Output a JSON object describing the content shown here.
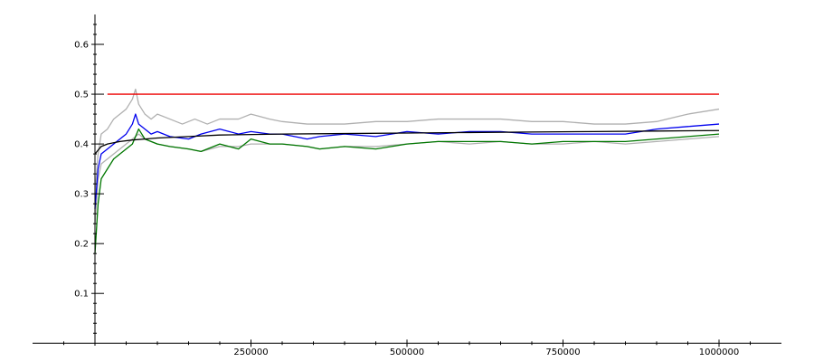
{
  "chart_data": {
    "type": "line",
    "title": "",
    "xlabel": "",
    "ylabel": "",
    "xlim": [
      -100000,
      1100000
    ],
    "ylim": [
      -0.005,
      0.66
    ],
    "grid": false,
    "legend": "none",
    "x_ticks": [
      {
        "value": 250000,
        "label": "250000"
      },
      {
        "value": 500000,
        "label": "500000"
      },
      {
        "value": 750000,
        "label": "750000"
      },
      {
        "value": 1000000,
        "label": "1000000"
      }
    ],
    "y_ticks": [
      {
        "value": 0.1,
        "label": "0.1"
      },
      {
        "value": 0.2,
        "label": "0.2"
      },
      {
        "value": 0.3,
        "label": "0.3"
      },
      {
        "value": 0.4,
        "label": "0.4"
      },
      {
        "value": 0.5,
        "label": "0.5"
      },
      {
        "value": 0.6,
        "label": "0.6"
      }
    ],
    "series": [
      {
        "color": "#b0b0b0",
        "x": [
          0,
          5000,
          10000,
          20000,
          30000,
          40000,
          50000,
          60000,
          65000,
          70000,
          75000,
          80000,
          90000,
          100000,
          120000,
          140000,
          160000,
          180000,
          200000,
          230000,
          250000,
          280000,
          300000,
          340000,
          360000,
          400000,
          450000,
          500000,
          550000,
          600000,
          650000,
          700000,
          750000,
          800000,
          850000,
          900000,
          950000,
          1000000
        ],
        "y": [
          0.3,
          0.38,
          0.42,
          0.43,
          0.45,
          0.46,
          0.47,
          0.49,
          0.51,
          0.48,
          0.47,
          0.46,
          0.45,
          0.46,
          0.45,
          0.44,
          0.45,
          0.44,
          0.45,
          0.45,
          0.46,
          0.45,
          0.445,
          0.44,
          0.44,
          0.44,
          0.445,
          0.445,
          0.45,
          0.45,
          0.45,
          0.445,
          0.445,
          0.44,
          0.44,
          0.445,
          0.46,
          0.47
        ]
      },
      {
        "color": "#b0b0b0",
        "x": [
          0,
          5000,
          10000,
          20000,
          30000,
          40000,
          50000,
          60000,
          70000,
          80000,
          100000,
          120000,
          150000,
          170000,
          200000,
          230000,
          250000,
          280000,
          300000,
          340000,
          360000,
          400000,
          450000,
          500000,
          550000,
          600000,
          650000,
          700000,
          750000,
          800000,
          850000,
          900000,
          950000,
          1000000
        ],
        "y": [
          0.24,
          0.33,
          0.36,
          0.37,
          0.38,
          0.39,
          0.4,
          0.41,
          0.42,
          0.41,
          0.4,
          0.395,
          0.39,
          0.385,
          0.395,
          0.395,
          0.4,
          0.4,
          0.4,
          0.395,
          0.39,
          0.395,
          0.395,
          0.4,
          0.405,
          0.4,
          0.405,
          0.4,
          0.4,
          0.405,
          0.4,
          0.405,
          0.41,
          0.415
        ]
      },
      {
        "color": "#0000ee",
        "x": [
          0,
          5000,
          10000,
          20000,
          30000,
          40000,
          50000,
          60000,
          65000,
          70000,
          80000,
          90000,
          100000,
          120000,
          150000,
          170000,
          200000,
          230000,
          250000,
          280000,
          300000,
          340000,
          360000,
          400000,
          450000,
          500000,
          550000,
          600000,
          650000,
          700000,
          750000,
          800000,
          850000,
          900000,
          950000,
          1000000
        ],
        "y": [
          0.27,
          0.35,
          0.38,
          0.39,
          0.4,
          0.41,
          0.42,
          0.44,
          0.46,
          0.44,
          0.43,
          0.42,
          0.425,
          0.415,
          0.41,
          0.42,
          0.43,
          0.42,
          0.425,
          0.42,
          0.42,
          0.41,
          0.415,
          0.42,
          0.415,
          0.425,
          0.42,
          0.425,
          0.425,
          0.42,
          0.42,
          0.42,
          0.42,
          0.43,
          0.435,
          0.44
        ]
      },
      {
        "color": "#007700",
        "x": [
          0,
          5000,
          10000,
          20000,
          30000,
          40000,
          50000,
          60000,
          70000,
          80000,
          100000,
          120000,
          150000,
          170000,
          200000,
          230000,
          250000,
          280000,
          300000,
          340000,
          360000,
          400000,
          450000,
          500000,
          550000,
          600000,
          650000,
          700000,
          750000,
          800000,
          850000,
          900000,
          950000,
          1000000
        ],
        "y": [
          0.18,
          0.28,
          0.33,
          0.35,
          0.37,
          0.38,
          0.39,
          0.4,
          0.43,
          0.41,
          0.4,
          0.395,
          0.39,
          0.385,
          0.4,
          0.39,
          0.41,
          0.4,
          0.4,
          0.395,
          0.39,
          0.395,
          0.39,
          0.4,
          0.405,
          0.405,
          0.405,
          0.4,
          0.405,
          0.405,
          0.405,
          0.41,
          0.415,
          0.42
        ]
      },
      {
        "color": "#000000",
        "x": [
          0,
          10000,
          20000,
          40000,
          60000,
          80000,
          100000,
          150000,
          200000,
          300000,
          400000,
          500000,
          600000,
          700000,
          800000,
          900000,
          1000000
        ],
        "y": [
          0.38,
          0.395,
          0.4,
          0.405,
          0.408,
          0.41,
          0.412,
          0.415,
          0.418,
          0.42,
          0.421,
          0.422,
          0.423,
          0.424,
          0.425,
          0.426,
          0.427
        ]
      },
      {
        "color": "#ee0000",
        "x": [
          20000,
          1000000
        ],
        "y": [
          0.5,
          0.5
        ]
      }
    ]
  }
}
